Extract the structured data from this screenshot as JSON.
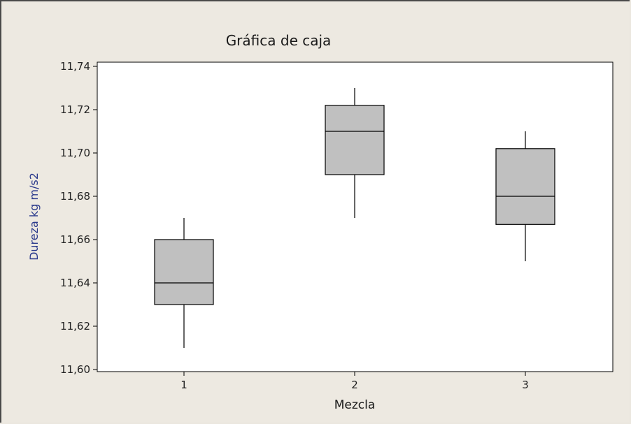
{
  "chart_data": {
    "type": "box",
    "title": "Gráfica de caja",
    "xlabel": "Mezcla",
    "ylabel": "Dureza kg m/s2",
    "categories": [
      "1",
      "2",
      "3"
    ],
    "ylim": [
      11.6,
      11.74
    ],
    "yticks": [
      "11,60",
      "11,62",
      "11,64",
      "11,66",
      "11,68",
      "11,70",
      "11,72",
      "11,74"
    ],
    "ytick_values": [
      11.6,
      11.62,
      11.64,
      11.66,
      11.68,
      11.7,
      11.72,
      11.74
    ],
    "boxes": [
      {
        "category": "1",
        "min": 11.61,
        "q1": 11.63,
        "median": 11.64,
        "q3": 11.66,
        "max": 11.67
      },
      {
        "category": "2",
        "min": 11.67,
        "q1": 11.69,
        "median": 11.71,
        "q3": 11.722,
        "max": 11.73
      },
      {
        "category": "3",
        "min": 11.65,
        "q1": 11.667,
        "median": 11.68,
        "q3": 11.702,
        "max": 11.71
      }
    ],
    "colors": {
      "box_fill": "#c0c0c0",
      "plot_bg": "#ffffff",
      "line": "#000000"
    },
    "grid": false
  }
}
